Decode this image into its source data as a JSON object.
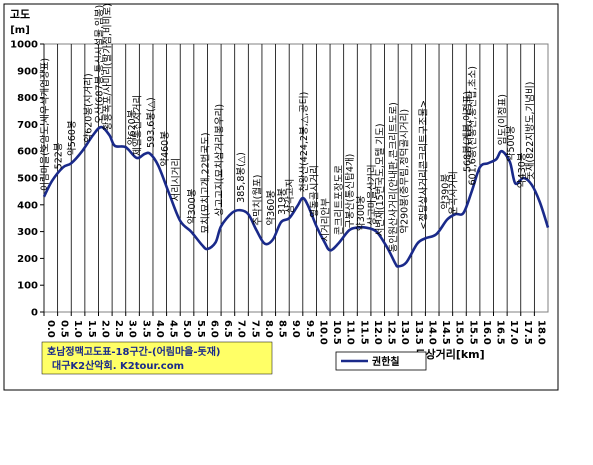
{
  "chart_data": {
    "type": "line",
    "ylabel_top": "고도",
    "ylabel_unit": "[m]",
    "xlabel": "도상거리[km]",
    "ylim": [
      0,
      1000
    ],
    "y_ticks": [
      0,
      100,
      200,
      300,
      400,
      500,
      600,
      700,
      800,
      900,
      1000
    ],
    "xlim": [
      0,
      18.5
    ],
    "x_ticks": [
      "0.0",
      "0.5",
      "1.0",
      "1.5",
      "2.0",
      "2.5",
      "3.0",
      "3.5",
      "4.0",
      "4.5",
      "5.0",
      "5.5",
      "6.0",
      "6.5",
      "7.0",
      "7.5",
      "8.0",
      "8.5",
      "9.0",
      "9.5",
      "10.0",
      "10.5",
      "11.0",
      "11.5",
      "12.0",
      "12.5",
      "13.0",
      "13.5",
      "14.0",
      "14.5",
      "15.0",
      "15.5",
      "16.0",
      "16.5",
      "17.0",
      "17.5",
      "18.0"
    ],
    "grid": "vertical",
    "series": [
      {
        "name": "권한칠",
        "color": "#1a2a8a",
        "points": [
          [
            0.0,
            430
          ],
          [
            0.3,
            490
          ],
          [
            0.7,
            540
          ],
          [
            1.0,
            555
          ],
          [
            1.4,
            600
          ],
          [
            1.8,
            660
          ],
          [
            2.1,
            690
          ],
          [
            2.4,
            660
          ],
          [
            2.6,
            620
          ],
          [
            3.0,
            615
          ],
          [
            3.4,
            575
          ],
          [
            3.7,
            590
          ],
          [
            3.9,
            590
          ],
          [
            4.2,
            545
          ],
          [
            4.6,
            440
          ],
          [
            5.0,
            340
          ],
          [
            5.4,
            300
          ],
          [
            5.8,
            250
          ],
          [
            6.0,
            235
          ],
          [
            6.3,
            260
          ],
          [
            6.5,
            320
          ],
          [
            6.9,
            370
          ],
          [
            7.2,
            380
          ],
          [
            7.5,
            365
          ],
          [
            7.8,
            305
          ],
          [
            8.1,
            255
          ],
          [
            8.4,
            270
          ],
          [
            8.7,
            335
          ],
          [
            9.0,
            350
          ],
          [
            9.3,
            395
          ],
          [
            9.5,
            425
          ],
          [
            9.7,
            395
          ],
          [
            10.0,
            320
          ],
          [
            10.3,
            260
          ],
          [
            10.5,
            230
          ],
          [
            10.8,
            255
          ],
          [
            11.2,
            305
          ],
          [
            11.5,
            315
          ],
          [
            11.8,
            315
          ],
          [
            12.2,
            300
          ],
          [
            12.6,
            240
          ],
          [
            12.9,
            180
          ],
          [
            13.0,
            170
          ],
          [
            13.3,
            185
          ],
          [
            13.7,
            255
          ],
          [
            14.0,
            275
          ],
          [
            14.4,
            290
          ],
          [
            14.8,
            345
          ],
          [
            15.1,
            365
          ],
          [
            15.4,
            370
          ],
          [
            15.7,
            450
          ],
          [
            16.0,
            540
          ],
          [
            16.3,
            555
          ],
          [
            16.6,
            570
          ],
          [
            16.8,
            600
          ],
          [
            17.1,
            560
          ],
          [
            17.3,
            480
          ],
          [
            17.6,
            500
          ],
          [
            17.9,
            475
          ],
          [
            18.2,
            410
          ],
          [
            18.5,
            315
          ]
        ]
      }
    ],
    "legend_position": "bottom-right",
    "annotations": [
      {
        "x": 0.0,
        "y": 430,
        "text": "어림마을(호암도,새우석개업장표)"
      },
      {
        "x": 0.5,
        "y": 510,
        "text": "522봉"
      },
      {
        "x": 1.0,
        "y": 560,
        "text": "약560봉"
      },
      {
        "x": 1.6,
        "y": 610,
        "text": "약620봉(시거리)"
      },
      {
        "x": 2.0,
        "y": 680,
        "text": "오산(687봉,통신시설물,임봉)"
      },
      {
        "x": 2.3,
        "y": 655,
        "text": "황룡폭포/사미리(발가점,비비로)"
      },
      {
        "x": 3.2,
        "y": 600,
        "text": "약620봉"
      },
      {
        "x": 3.4,
        "y": 560,
        "text": "제일통신시거리"
      },
      {
        "x": 3.9,
        "y": 590,
        "text": "593,6봉(△)"
      },
      {
        "x": 4.4,
        "y": 520,
        "text": "약460봉"
      },
      {
        "x": 4.8,
        "y": 390,
        "text": "서리시거리"
      },
      {
        "x": 5.4,
        "y": 305,
        "text": "약300봉"
      },
      {
        "x": 5.9,
        "y": 270,
        "text": "묘치(묘치고개,22번국도)"
      },
      {
        "x": 6.4,
        "y": 335,
        "text": "상고고지(묘치삼거리봉우리)"
      },
      {
        "x": 7.2,
        "y": 385,
        "text": "385,8봉(△)"
      },
      {
        "x": 7.8,
        "y": 300,
        "text": "주막치(월포)"
      },
      {
        "x": 8.3,
        "y": 300,
        "text": "약360봉"
      },
      {
        "x": 8.7,
        "y": 340,
        "text": "319봉"
      },
      {
        "x": 9.0,
        "y": 345,
        "text": "삼각고지"
      },
      {
        "x": 9.5,
        "y": 425,
        "text": "천왕산(424,2봉,△,공터)"
      },
      {
        "x": 9.9,
        "y": 330,
        "text": "영동골시거리"
      },
      {
        "x": 10.3,
        "y": 240,
        "text": "시거리안부"
      },
      {
        "x": 10.8,
        "y": 265,
        "text": "콘크리트포장도로"
      },
      {
        "x": 11.2,
        "y": 290,
        "text": "구봉산(통신탑4개)"
      },
      {
        "x": 11.6,
        "y": 280,
        "text": "약300봉"
      },
      {
        "x": 12.0,
        "y": 300,
        "text": "상고마을산거리"
      },
      {
        "x": 12.3,
        "y": 260,
        "text": "서변재(15번국도,모텔 기도)"
      },
      {
        "x": 12.8,
        "y": 200,
        "text": "동인원산사거리(안내판,콘크리트도로)"
      },
      {
        "x": 13.2,
        "y": 270,
        "text": "약290봉(중무림,정덕골시거리)"
      },
      {
        "x": 13.9,
        "y": 285,
        "text": "<정당상사거리콘크리트구조물>"
      },
      {
        "x": 14.7,
        "y": 360,
        "text": "약390봉"
      },
      {
        "x": 15.0,
        "y": 340,
        "text": "운곡시거리"
      },
      {
        "x": 15.5,
        "y": 500,
        "text": "568봉(계봉,이정표)"
      },
      {
        "x": 15.7,
        "y": 450,
        "text": "601,6봉(전봉산,통신탑,초소)"
      },
      {
        "x": 16.8,
        "y": 600,
        "text": "임도(이정표)"
      },
      {
        "x": 17.1,
        "y": 540,
        "text": "약500봉"
      },
      {
        "x": 17.5,
        "y": 440,
        "text": "약430봉"
      },
      {
        "x": 17.8,
        "y": 470,
        "text": "돗재(822지방도,기념비)"
      }
    ]
  },
  "info_box": {
    "line1": "호남정맥고도표-18구간-(어림마을-돗재)",
    "line2": "대구K2산악회. K2tour.com",
    "background": "#ffff66"
  },
  "colors": {
    "plot_area": "#ffffff",
    "line": "#1a2a8a",
    "border": "#000000"
  }
}
